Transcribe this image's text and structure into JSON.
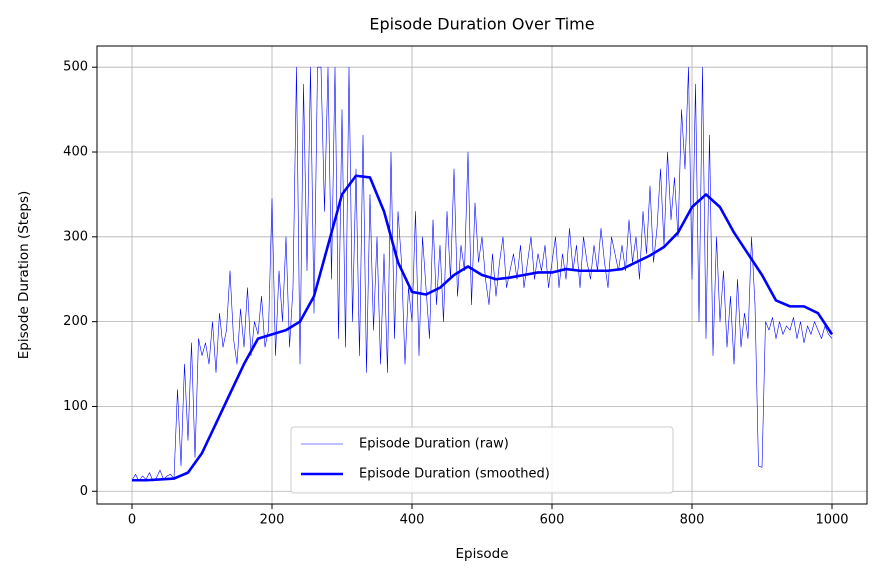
{
  "chart_data": {
    "type": "line",
    "title": "Episode Duration Over Time",
    "x_label": "Episode",
    "y_label": "Episode Duration (Steps)",
    "xlim": [
      -50,
      1050
    ],
    "ylim": [
      -15,
      525
    ],
    "xticks": [
      0,
      200,
      400,
      600,
      800,
      1000
    ],
    "yticks": [
      0,
      100,
      200,
      300,
      400,
      500
    ],
    "grid": true,
    "legend": "lower center",
    "series": [
      {
        "name": "Episode Duration (raw)",
        "color": "#0000ff",
        "width": 0.6,
        "x": [
          0,
          5,
          10,
          15,
          20,
          25,
          30,
          35,
          40,
          45,
          50,
          55,
          60,
          65,
          70,
          75,
          80,
          85,
          90,
          95,
          100,
          105,
          110,
          115,
          120,
          125,
          130,
          135,
          140,
          145,
          150,
          155,
          160,
          165,
          170,
          175,
          180,
          185,
          190,
          195,
          200,
          205,
          210,
          215,
          220,
          225,
          230,
          235,
          240,
          245,
          250,
          255,
          260,
          265,
          270,
          275,
          280,
          285,
          290,
          295,
          300,
          305,
          310,
          315,
          320,
          325,
          330,
          335,
          340,
          345,
          350,
          355,
          360,
          365,
          370,
          375,
          380,
          385,
          390,
          395,
          400,
          405,
          410,
          415,
          420,
          425,
          430,
          435,
          440,
          445,
          450,
          455,
          460,
          465,
          470,
          475,
          480,
          485,
          490,
          495,
          500,
          505,
          510,
          515,
          520,
          525,
          530,
          535,
          540,
          545,
          550,
          555,
          560,
          565,
          570,
          575,
          580,
          585,
          590,
          595,
          600,
          605,
          610,
          615,
          620,
          625,
          630,
          635,
          640,
          645,
          650,
          655,
          660,
          665,
          670,
          675,
          680,
          685,
          690,
          695,
          700,
          705,
          710,
          715,
          720,
          725,
          730,
          735,
          740,
          745,
          750,
          755,
          760,
          765,
          770,
          775,
          780,
          785,
          790,
          795,
          800,
          805,
          810,
          815,
          820,
          825,
          830,
          835,
          840,
          845,
          850,
          855,
          860,
          865,
          870,
          875,
          880,
          885,
          890,
          895,
          900,
          905,
          910,
          915,
          920,
          925,
          930,
          935,
          940,
          945,
          950,
          955,
          960,
          965,
          970,
          975,
          980,
          985,
          990,
          995,
          1000
        ],
        "values": [
          13,
          20,
          12,
          18,
          14,
          22,
          12,
          16,
          25,
          14,
          18,
          20,
          15,
          120,
          30,
          150,
          60,
          175,
          40,
          180,
          160,
          175,
          150,
          200,
          140,
          210,
          170,
          190,
          260,
          180,
          150,
          215,
          170,
          240,
          160,
          200,
          185,
          230,
          170,
          190,
          345,
          160,
          260,
          200,
          300,
          170,
          240,
          500,
          150,
          480,
          260,
          500,
          210,
          500,
          500,
          330,
          500,
          250,
          500,
          180,
          450,
          170,
          500,
          200,
          380,
          160,
          420,
          140,
          350,
          190,
          300,
          150,
          280,
          140,
          400,
          180,
          330,
          270,
          150,
          240,
          200,
          330,
          160,
          300,
          240,
          180,
          320,
          220,
          290,
          200,
          330,
          250,
          380,
          230,
          290,
          260,
          400,
          220,
          340,
          270,
          300,
          250,
          220,
          280,
          230,
          270,
          300,
          240,
          260,
          280,
          250,
          290,
          240,
          270,
          300,
          250,
          280,
          260,
          290,
          240,
          270,
          300,
          240,
          280,
          250,
          310,
          260,
          290,
          240,
          300,
          270,
          250,
          290,
          260,
          310,
          270,
          240,
          300,
          280,
          260,
          290,
          260,
          320,
          270,
          300,
          250,
          330,
          280,
          360,
          270,
          310,
          380,
          290,
          400,
          320,
          370,
          300,
          450,
          380,
          500,
          250,
          480,
          200,
          500,
          180,
          420,
          160,
          300,
          200,
          260,
          170,
          230,
          150,
          250,
          170,
          210,
          180,
          300,
          220,
          30,
          28,
          200,
          190,
          205,
          180,
          200,
          185,
          195,
          190,
          205,
          180,
          200,
          175,
          195,
          185,
          200,
          190,
          180,
          195,
          185,
          180
        ]
      },
      {
        "name": "Episode Duration (smoothed)",
        "color": "#0000ff",
        "width": 2.6,
        "x": [
          0,
          20,
          40,
          60,
          80,
          100,
          120,
          140,
          160,
          180,
          200,
          220,
          240,
          260,
          280,
          300,
          320,
          340,
          360,
          380,
          400,
          420,
          440,
          460,
          480,
          500,
          520,
          540,
          560,
          580,
          600,
          620,
          640,
          660,
          680,
          700,
          720,
          740,
          760,
          780,
          800,
          820,
          840,
          860,
          880,
          900,
          920,
          940,
          960,
          980,
          1000
        ],
        "values": [
          13,
          13,
          14,
          15,
          22,
          45,
          80,
          115,
          150,
          180,
          185,
          190,
          200,
          230,
          290,
          350,
          372,
          370,
          330,
          270,
          235,
          232,
          240,
          255,
          265,
          255,
          250,
          252,
          255,
          258,
          258,
          262,
          260,
          260,
          260,
          262,
          270,
          278,
          288,
          305,
          335,
          350,
          335,
          305,
          280,
          255,
          225,
          218,
          218,
          210,
          185
        ]
      }
    ]
  }
}
